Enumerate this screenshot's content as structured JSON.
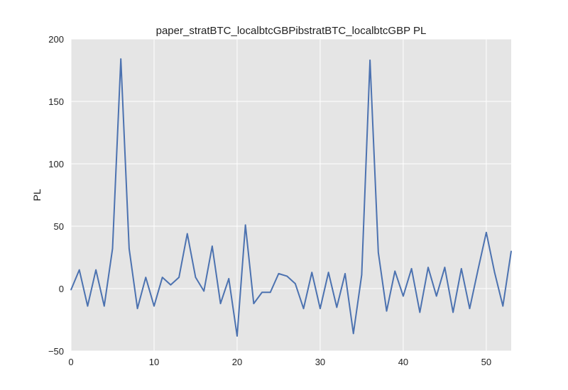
{
  "chart_data": {
    "type": "line",
    "title": "paper_stratBTC_localbtcGBPibstratBTC_localbtcGBP PL",
    "xlabel": "",
    "ylabel": "PL",
    "xlim": [
      0,
      53
    ],
    "ylim": [
      -50,
      200
    ],
    "xticks": [
      0,
      10,
      20,
      30,
      40,
      50
    ],
    "yticks": [
      -50,
      0,
      50,
      100,
      150,
      200
    ],
    "ytick_labels": [
      "−50",
      "0",
      "50",
      "100",
      "150",
      "200"
    ],
    "grid": true,
    "legend": "none",
    "colors": {
      "line": "#4c72b0",
      "plot_bg": "#e5e5e5",
      "grid": "#ffffff"
    },
    "series": [
      {
        "x": [
          0,
          1,
          2,
          3,
          4,
          5,
          6,
          7,
          8,
          9,
          10,
          11,
          12,
          13,
          14,
          15,
          16,
          17,
          18,
          19,
          20,
          21,
          22,
          23,
          24,
          25,
          26,
          27,
          28,
          29,
          30,
          31,
          32,
          33,
          34,
          35,
          36,
          37,
          38,
          39,
          40,
          41,
          42,
          43,
          44,
          45,
          46,
          47,
          48,
          49,
          50,
          51,
          52,
          53
        ],
        "values": [
          -1,
          15,
          -14,
          15,
          -14,
          32,
          184,
          32,
          -16,
          9,
          -14,
          9,
          3,
          9,
          44,
          9,
          -2,
          34,
          -12,
          8,
          -38,
          51,
          -12,
          -3,
          -3,
          12,
          10,
          4,
          -16,
          13,
          -16,
          13,
          -15,
          12,
          -36,
          11,
          183,
          29,
          -18,
          14,
          -6,
          16,
          -19,
          17,
          -6,
          17,
          -19,
          16,
          -16,
          15,
          45,
          13,
          -14,
          30
        ]
      }
    ]
  }
}
